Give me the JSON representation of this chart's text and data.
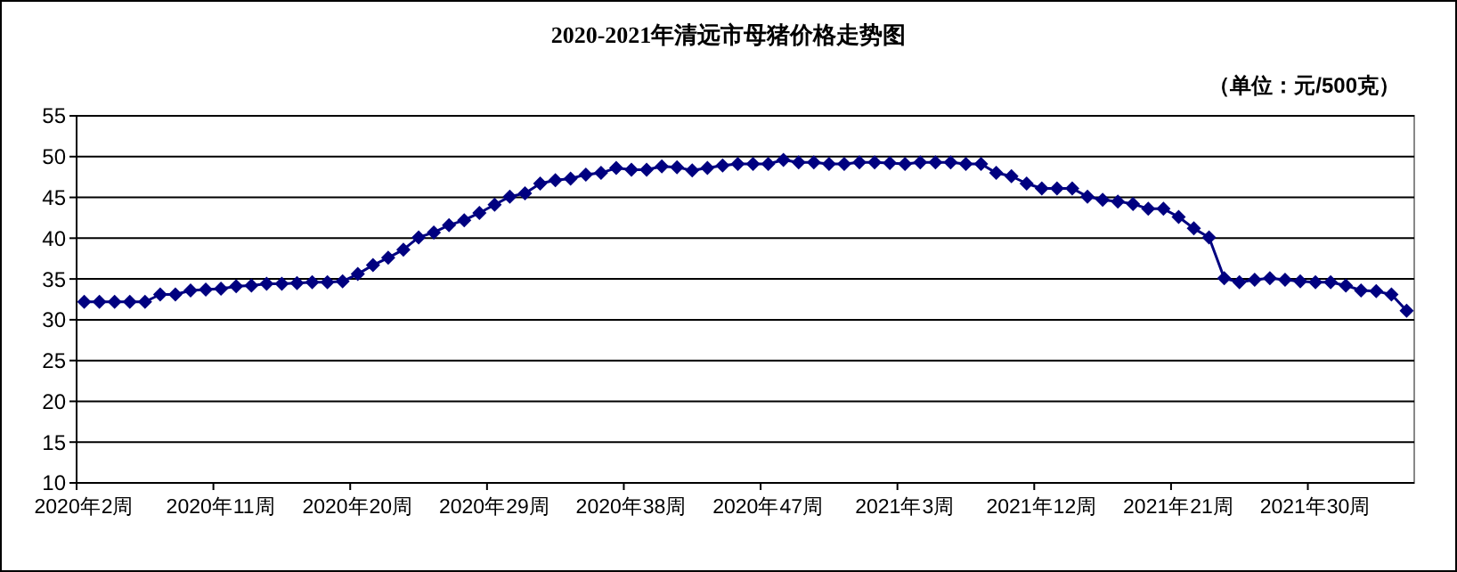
{
  "chart_data": {
    "type": "line",
    "title": "2020-2021年清远市母猪价格走势图",
    "subtitle": "（单位：元/500克）",
    "categories": [
      "2020年2周",
      null,
      null,
      null,
      null,
      null,
      null,
      null,
      null,
      "2020年11周",
      null,
      null,
      null,
      null,
      null,
      null,
      null,
      null,
      "2020年20周",
      null,
      null,
      null,
      null,
      null,
      null,
      null,
      null,
      "2020年29周",
      null,
      null,
      null,
      null,
      null,
      null,
      null,
      null,
      "2020年38周",
      null,
      null,
      null,
      null,
      null,
      null,
      null,
      null,
      "2020年47周",
      null,
      null,
      null,
      null,
      null,
      null,
      null,
      null,
      "2021年3周",
      null,
      null,
      null,
      null,
      null,
      null,
      null,
      null,
      "2021年12周",
      null,
      null,
      null,
      null,
      null,
      null,
      null,
      null,
      "2021年21周",
      null,
      null,
      null,
      null,
      null,
      null,
      null,
      null,
      "2021年30周",
      null,
      null,
      null,
      null,
      null,
      null
    ],
    "series": [
      {
        "color": "#000080",
        "values": [
          32.2,
          32.2,
          32.2,
          32.2,
          32.2,
          33.1,
          33.1,
          33.6,
          33.7,
          33.8,
          34.1,
          34.2,
          34.4,
          34.4,
          34.5,
          34.6,
          34.6,
          34.7,
          35.6,
          36.7,
          37.6,
          38.6,
          40.1,
          40.7,
          41.6,
          42.2,
          43.1,
          44.1,
          45.1,
          45.5,
          46.7,
          47.1,
          47.3,
          47.8,
          48.0,
          48.6,
          48.4,
          48.4,
          48.8,
          48.7,
          48.3,
          48.6,
          48.9,
          49.1,
          49.1,
          49.1,
          49.6,
          49.3,
          49.3,
          49.1,
          49.1,
          49.3,
          49.3,
          49.2,
          49.1,
          49.3,
          49.3,
          49.3,
          49.1,
          49.1,
          48.0,
          47.6,
          46.7,
          46.1,
          46.1,
          46.1,
          45.1,
          44.7,
          44.5,
          44.2,
          43.6,
          43.6,
          42.6,
          41.2,
          40.1,
          35.1,
          34.6,
          34.9,
          35.1,
          34.9,
          34.7,
          34.6,
          34.6,
          34.2,
          33.6,
          33.5,
          33.1,
          31.1
        ]
      }
    ],
    "ylim": [
      10,
      55
    ],
    "yticks": [
      10,
      15,
      20,
      25,
      30,
      35,
      40,
      45,
      50,
      55
    ],
    "grid": "y",
    "marker": "diamond",
    "line_style": "solid"
  }
}
